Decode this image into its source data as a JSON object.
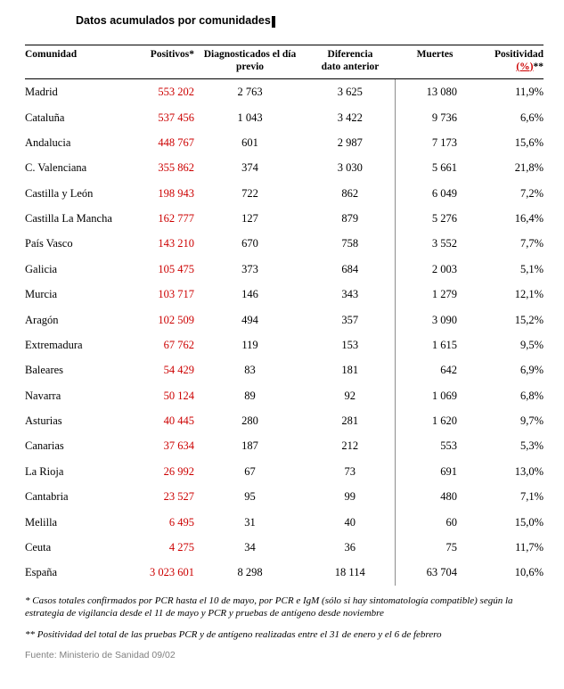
{
  "document": {
    "title": "Datos acumulados por comunidades"
  },
  "colors": {
    "positivos_text": "#cc0000",
    "inserted_text": "#cc0000",
    "source_text": "#808080",
    "divider": "#8c8c8c"
  },
  "table": {
    "columns": [
      {
        "key": "comunidad",
        "label": "Comunidad"
      },
      {
        "key": "positivos",
        "label": "Positivos*"
      },
      {
        "key": "diagnosticados",
        "label": "Diagnosticados el día\nprevio"
      },
      {
        "key": "diferencia",
        "label": "Diferencia\ndato anterior"
      },
      {
        "key": "muertes",
        "label": "Muertes"
      },
      {
        "key": "positividad",
        "label": "Positividad"
      }
    ],
    "positividad_header": {
      "line1": "Positividad",
      "inserted": "(%)",
      "suffix": "**"
    },
    "rows": [
      {
        "comunidad": "Madrid",
        "positivos": "553 202",
        "diagnosticados": "2 763",
        "diferencia": "3 625",
        "muertes": "13 080",
        "positividad": "11,9%"
      },
      {
        "comunidad": "Cataluña",
        "positivos": "537 456",
        "diagnosticados": "1 043",
        "diferencia": "3 422",
        "muertes": "9 736",
        "positividad": "6,6%"
      },
      {
        "comunidad": "Andalucia",
        "positivos": "448 767",
        "diagnosticados": "601",
        "diferencia": "2 987",
        "muertes": "7 173",
        "positividad": "15,6%"
      },
      {
        "comunidad": "C. Valenciana",
        "positivos": "355 862",
        "diagnosticados": "374",
        "diferencia": "3 030",
        "muertes": "5 661",
        "positividad": "21,8%"
      },
      {
        "comunidad": "Castilla y León",
        "positivos": "198 943",
        "diagnosticados": "722",
        "diferencia": "862",
        "muertes": "6 049",
        "positividad": "7,2%"
      },
      {
        "comunidad": "Castilla La Mancha",
        "positivos": "162 777",
        "diagnosticados": "127",
        "diferencia": "879",
        "muertes": "5 276",
        "positividad": "16,4%"
      },
      {
        "comunidad": "País Vasco",
        "positivos": "143 210",
        "diagnosticados": "670",
        "diferencia": "758",
        "muertes": "3 552",
        "positividad": "7,7%"
      },
      {
        "comunidad": "Galicia",
        "positivos": "105 475",
        "diagnosticados": "373",
        "diferencia": "684",
        "muertes": "2 003",
        "positividad": "5,1%"
      },
      {
        "comunidad": "Murcia",
        "positivos": "103 717",
        "diagnosticados": "146",
        "diferencia": "343",
        "muertes": "1 279",
        "positividad": "12,1%"
      },
      {
        "comunidad": "Aragón",
        "positivos": "102 509",
        "diagnosticados": "494",
        "diferencia": "357",
        "muertes": "3 090",
        "positividad": "15,2%"
      },
      {
        "comunidad": "Extremadura",
        "positivos": "67 762",
        "diagnosticados": "119",
        "diferencia": "153",
        "muertes": "1 615",
        "positividad": "9,5%"
      },
      {
        "comunidad": "Baleares",
        "positivos": "54 429",
        "diagnosticados": "83",
        "diferencia": "181",
        "muertes": "642",
        "positividad": "6,9%"
      },
      {
        "comunidad": "Navarra",
        "positivos": "50 124",
        "diagnosticados": "89",
        "diferencia": "92",
        "muertes": "1 069",
        "positividad": "6,8%"
      },
      {
        "comunidad": "Asturias",
        "positivos": "40 445",
        "diagnosticados": "280",
        "diferencia": "281",
        "muertes": "1 620",
        "positividad": "9,7%"
      },
      {
        "comunidad": "Canarias",
        "positivos": "37 634",
        "diagnosticados": "187",
        "diferencia": "212",
        "muertes": "553",
        "positividad": "5,3%"
      },
      {
        "comunidad": "La Rioja",
        "positivos": "26 992",
        "diagnosticados": "67",
        "diferencia": "73",
        "muertes": "691",
        "positividad": "13,0%"
      },
      {
        "comunidad": "Cantabria",
        "positivos": "23 527",
        "diagnosticados": "95",
        "diferencia": "99",
        "muertes": "480",
        "positividad": "7,1%"
      },
      {
        "comunidad": "Melilla",
        "positivos": "6 495",
        "diagnosticados": "31",
        "diferencia": "40",
        "muertes": "60",
        "positividad": "15,0%"
      },
      {
        "comunidad": "Ceuta",
        "positivos": "4 275",
        "diagnosticados": "34",
        "diferencia": "36",
        "muertes": "75",
        "positividad": "11,7%"
      },
      {
        "comunidad": "España",
        "positivos": "3 023 601",
        "diagnosticados": "8 298",
        "diferencia": "18 114",
        "muertes": "63 704",
        "positividad": "10,6%"
      }
    ]
  },
  "footnotes": [
    "* Casos totales confirmados por PCR hasta el 10 de mayo, por PCR e IgM (sólo si hay sintomatología compatible) según la estrategia de vigilancia desde el 11 de mayo y PCR y pruebas de antígeno desde noviembre",
    "** Positividad del total de las pruebas PCR y de antígeno realizadas entre el 31 de enero y el 6 de febrero"
  ],
  "source": "Fuente: Ministerio de Sanidad 09/02"
}
